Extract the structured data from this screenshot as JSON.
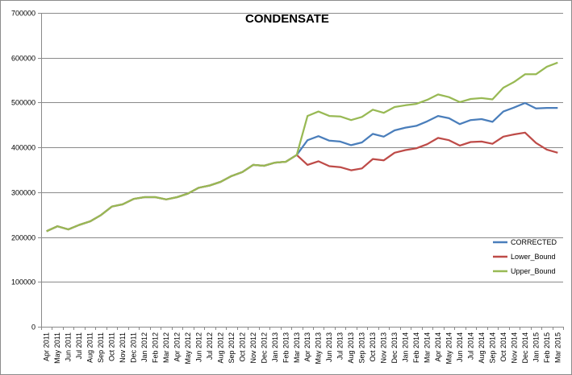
{
  "chart_data": {
    "type": "line",
    "title": "CONDENSATE",
    "xlabel": "",
    "ylabel": "",
    "ylim": [
      0,
      700000
    ],
    "yticks": [
      "0",
      "100000",
      "200000",
      "300000",
      "400000",
      "500000",
      "600000",
      "700000"
    ],
    "grid": "horizontal",
    "legend_position": "right",
    "categories": [
      "Apr 2011",
      "May 2011",
      "Jun 2011",
      "Jul 2011",
      "Aug 2011",
      "Sep 2011",
      "Oct 2011",
      "Nov 2011",
      "Dec 2011",
      "Jan 2012",
      "Feb 2012",
      "Mar 2012",
      "Apr 2012",
      "May 2012",
      "Jun 2012",
      "Jul 2012",
      "Aug 2012",
      "Sep 2012",
      "Oct 2012",
      "Nov 2012",
      "Dec 2012",
      "Jan 2013",
      "Feb 2013",
      "Mar 2013",
      "Apr 2013",
      "May 2013",
      "Jun 2013",
      "Jul 2013",
      "Aug 2013",
      "Sep 2013",
      "Oct 2013",
      "Nov 2013",
      "Dec 2013",
      "Jan 2014",
      "Feb 2014",
      "Mar 2014",
      "Apr 2014",
      "May 2014",
      "Jun 2014",
      "Jul 2014",
      "Aug 2014",
      "Sep 2014",
      "Oct 2014",
      "Nov 2014",
      "Dec 2014",
      "Jan 2015",
      "Feb 2015",
      "Mar 2015"
    ],
    "series": [
      {
        "name": "CORRECTED",
        "color": "#4a7ebb",
        "values": [
          213000,
          224000,
          217000,
          227000,
          235000,
          249000,
          268000,
          273000,
          285000,
          289000,
          289000,
          284000,
          289000,
          297000,
          310000,
          315000,
          323000,
          336000,
          345000,
          361000,
          359000,
          366000,
          368000,
          383000,
          416000,
          425000,
          415000,
          413000,
          405000,
          411000,
          430000,
          424000,
          438000,
          444000,
          448000,
          458000,
          470000,
          465000,
          452000,
          461000,
          463000,
          457000,
          480000,
          489000,
          499000,
          487000,
          488000,
          488000
        ]
      },
      {
        "name": "Lower_Bound",
        "color": "#be4b48",
        "values": [
          213000,
          224000,
          217000,
          227000,
          235000,
          249000,
          268000,
          273000,
          285000,
          289000,
          289000,
          284000,
          289000,
          297000,
          310000,
          315000,
          323000,
          336000,
          345000,
          361000,
          359000,
          366000,
          368000,
          383000,
          361000,
          369000,
          358000,
          356000,
          349000,
          353000,
          374000,
          371000,
          388000,
          394000,
          398000,
          407000,
          421000,
          416000,
          404000,
          412000,
          413000,
          408000,
          424000,
          429000,
          433000,
          410000,
          395000,
          388000
        ]
      },
      {
        "name": "Upper_Bound",
        "color": "#98b954",
        "values": [
          213000,
          224000,
          217000,
          227000,
          235000,
          249000,
          268000,
          273000,
          285000,
          289000,
          289000,
          284000,
          289000,
          297000,
          310000,
          315000,
          323000,
          336000,
          345000,
          361000,
          359000,
          366000,
          368000,
          383000,
          470000,
          480000,
          470000,
          469000,
          461000,
          468000,
          484000,
          477000,
          490000,
          494000,
          497000,
          506000,
          518000,
          512000,
          501000,
          508000,
          510000,
          507000,
          533000,
          546000,
          563000,
          563000,
          580000,
          589000
        ]
      }
    ]
  }
}
